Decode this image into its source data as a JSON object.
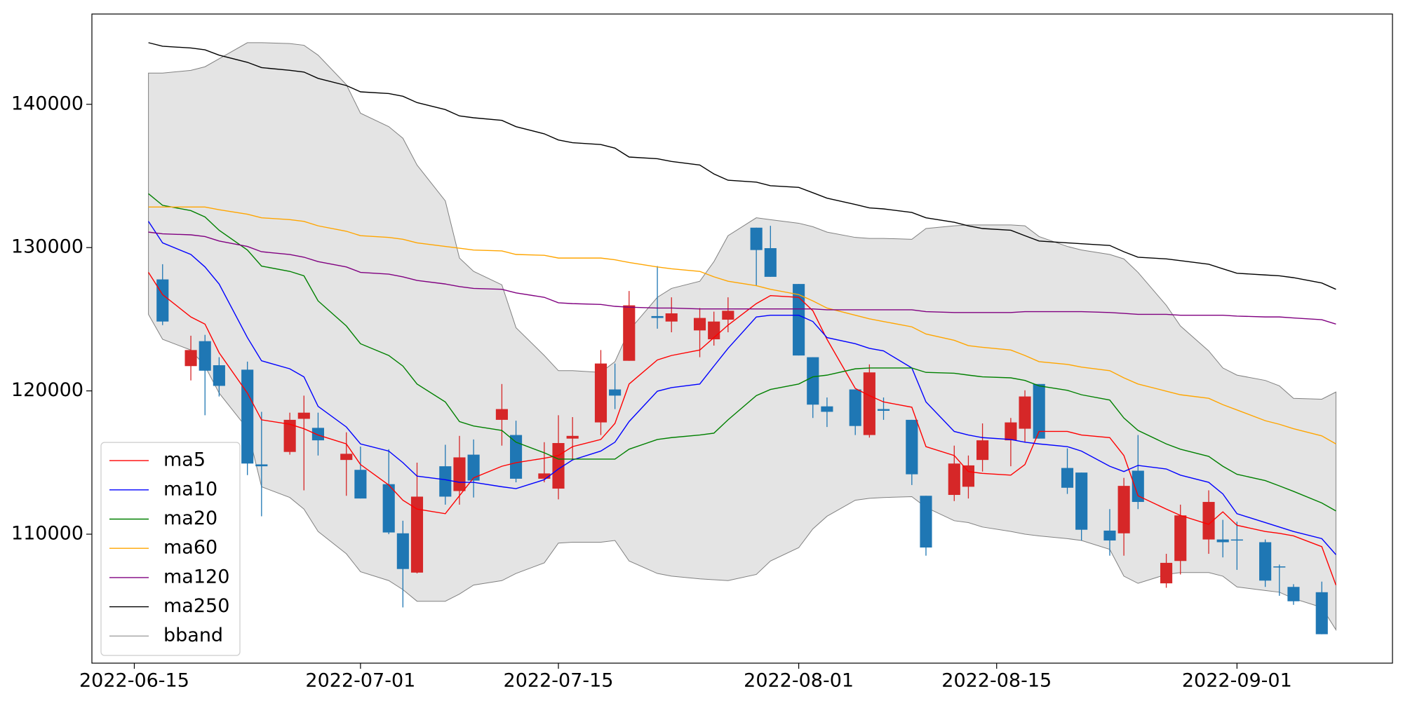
{
  "chart_data": {
    "type": "candlestick",
    "x": [
      "2022-06-16",
      "2022-06-17",
      "2022-06-19",
      "2022-06-20",
      "2022-06-21",
      "2022-06-23",
      "2022-06-24",
      "2022-06-26",
      "2022-06-27",
      "2022-06-28",
      "2022-06-30",
      "2022-07-01",
      "2022-07-03",
      "2022-07-04",
      "2022-07-05",
      "2022-07-07",
      "2022-07-08",
      "2022-07-09",
      "2022-07-11",
      "2022-07-12",
      "2022-07-14",
      "2022-07-15",
      "2022-07-16",
      "2022-07-18",
      "2022-07-19",
      "2022-07-20",
      "2022-07-22",
      "2022-07-23",
      "2022-07-25",
      "2022-07-26",
      "2022-07-27",
      "2022-07-29",
      "2022-07-30",
      "2022-08-01",
      "2022-08-02",
      "2022-08-03",
      "2022-08-05",
      "2022-08-06",
      "2022-08-07",
      "2022-08-09",
      "2022-08-10",
      "2022-08-12",
      "2022-08-13",
      "2022-08-14",
      "2022-08-16",
      "2022-08-17",
      "2022-08-18",
      "2022-08-20",
      "2022-08-21",
      "2022-08-23",
      "2022-08-24",
      "2022-08-25",
      "2022-08-27",
      "2022-08-28",
      "2022-08-30",
      "2022-08-31",
      "2022-09-01",
      "2022-09-03",
      "2022-09-04",
      "2022-09-05",
      "2022-09-07",
      "2022-09-08"
    ],
    "candles": {
      "up_color": "#d62728",
      "down_color": "#1f77b4",
      "open": [
        null,
        127780,
        121730,
        123470,
        121790,
        121480,
        114870,
        115740,
        118050,
        117420,
        115180,
        114490,
        113490,
        110060,
        107320,
        114740,
        113010,
        115550,
        117980,
        116920,
        113870,
        113180,
        116670,
        117800,
        120100,
        122100,
        125220,
        124840,
        124220,
        123600,
        124970,
        131390,
        129960,
        127460,
        122350,
        118920,
        120100,
        116920,
        118730,
        117980,
        112680,
        112740,
        113310,
        115180,
        116550,
        117360,
        120480,
        114620,
        114300,
        110250,
        110060,
        114430,
        106570,
        108130,
        109630,
        109630,
        109630,
        109440,
        107750,
        106320,
        105950,
        null
      ],
      "high": [
        null,
        128840,
        123850,
        123910,
        122350,
        122040,
        118540,
        118480,
        119670,
        118480,
        117110,
        116110,
        115930,
        110940,
        114990,
        116240,
        116860,
        116610,
        120480,
        117920,
        116420,
        118300,
        118170,
        122850,
        121910,
        126970,
        128710,
        126530,
        125780,
        125530,
        126530,
        131390,
        131520,
        127460,
        122350,
        119540,
        120100,
        121850,
        119540,
        117980,
        112680,
        116180,
        115490,
        117730,
        118110,
        120040,
        120480,
        115990,
        114300,
        111750,
        113930,
        116920,
        108630,
        112060,
        113060,
        111000,
        110870,
        109630,
        107880,
        106510,
        106690,
        null
      ],
      "low": [
        null,
        124590,
        120730,
        118300,
        119610,
        114120,
        111250,
        115550,
        113060,
        115490,
        112680,
        112490,
        110000,
        104890,
        107260,
        112060,
        112060,
        112560,
        116180,
        113620,
        113620,
        112430,
        115180,
        116920,
        118730,
        122100,
        124340,
        124090,
        122350,
        123160,
        124090,
        127340,
        127960,
        122470,
        118110,
        117480,
        116920,
        116740,
        117980,
        113430,
        108500,
        112310,
        112490,
        114370,
        114740,
        116420,
        116670,
        112810,
        109560,
        108500,
        108500,
        111750,
        106260,
        107190,
        108630,
        108380,
        107510,
        106320,
        105700,
        105070,
        103020,
        null
      ],
      "close": [
        null,
        124840,
        122850,
        121410,
        120350,
        114930,
        114740,
        117980,
        118480,
        116550,
        115610,
        112490,
        110120,
        107570,
        112620,
        112620,
        115360,
        113740,
        118730,
        113870,
        114240,
        116360,
        116860,
        121910,
        119670,
        125970,
        125090,
        125410,
        125090,
        124840,
        125590,
        129830,
        127960,
        122470,
        119040,
        118540,
        117550,
        121290,
        118610,
        114180,
        109070,
        114930,
        114800,
        116550,
        117800,
        119610,
        116670,
        113240,
        110310,
        109560,
        113370,
        112250,
        108000,
        111310,
        112250,
        109440,
        109570,
        106760,
        107690,
        105320,
        103020,
        null
      ]
    },
    "series": [
      {
        "name": "ma5",
        "color": "#ff0000",
        "values": [
          128270,
          126720,
          125160,
          124660,
          122660,
          119850,
          117980,
          117670,
          117360,
          116920,
          116300,
          114860,
          113430,
          112370,
          111750,
          111430,
          112680,
          113930,
          114740,
          114990,
          115300,
          115490,
          116110,
          116610,
          117730,
          120480,
          122160,
          122470,
          122850,
          123720,
          124590,
          126090,
          126650,
          126530,
          125590,
          123600,
          120170,
          119670,
          119230,
          118860,
          116110,
          115490,
          114370,
          114240,
          114120,
          114860,
          117170,
          117170,
          116920,
          116740,
          115490,
          112680,
          111750,
          111310,
          110690,
          111560,
          110620,
          110190,
          110060,
          109880,
          109130,
          106450
        ]
      },
      {
        "name": "ma10",
        "color": "#0000ff",
        "values": [
          131830,
          130330,
          129520,
          128650,
          127460,
          123720,
          122100,
          121540,
          120980,
          118920,
          117480,
          116300,
          115800,
          114990,
          114050,
          113800,
          113620,
          113620,
          113310,
          113180,
          113800,
          114550,
          115180,
          115800,
          116420,
          117860,
          119980,
          120230,
          120480,
          121730,
          122970,
          125160,
          125280,
          125280,
          124840,
          123720,
          123290,
          122970,
          122790,
          121600,
          119230,
          117170,
          116920,
          116740,
          116610,
          116420,
          116300,
          116110,
          115800,
          114740,
          114370,
          114800,
          114550,
          114120,
          113620,
          112810,
          111430,
          110810,
          110500,
          110190,
          109690,
          108570
        ]
      },
      {
        "name": "ma20",
        "color": "#008000",
        "values": [
          133760,
          132950,
          132580,
          132140,
          131210,
          129830,
          128710,
          128340,
          128030,
          126280,
          124530,
          123290,
          122470,
          121730,
          120480,
          119230,
          117860,
          117550,
          117240,
          116420,
          115680,
          115240,
          115240,
          115240,
          115240,
          115930,
          116610,
          116740,
          116920,
          117050,
          117980,
          119670,
          120100,
          120480,
          120980,
          121100,
          121540,
          121600,
          121600,
          121600,
          121290,
          121230,
          121100,
          120980,
          120910,
          120730,
          120350,
          120040,
          119730,
          119360,
          118110,
          117240,
          116300,
          115930,
          115430,
          114740,
          114180,
          113740,
          113370,
          112990,
          112180,
          111620
        ]
      },
      {
        "name": "ma60",
        "color": "#ffa500",
        "values": [
          132830,
          132830,
          132830,
          132830,
          132640,
          132330,
          132080,
          131950,
          131830,
          131520,
          131140,
          130830,
          130710,
          130580,
          130330,
          130080,
          129960,
          129830,
          129770,
          129520,
          129460,
          129270,
          129270,
          129270,
          129150,
          128960,
          128650,
          128520,
          128340,
          127960,
          127650,
          127340,
          127090,
          126720,
          126280,
          125780,
          125280,
          125030,
          124840,
          124470,
          123970,
          123530,
          123160,
          123040,
          122850,
          122470,
          122040,
          121850,
          121660,
          121410,
          120910,
          120480,
          119980,
          119730,
          119480,
          119040,
          118670,
          117920,
          117670,
          117360,
          116860,
          116300
        ]
      },
      {
        "name": "ma120",
        "color": "#800080",
        "values": [
          131080,
          130960,
          130890,
          130770,
          130460,
          130080,
          129710,
          129520,
          129330,
          129020,
          128650,
          128270,
          128150,
          127960,
          127710,
          127460,
          127280,
          127150,
          127090,
          126840,
          126530,
          126150,
          126090,
          126030,
          125900,
          125840,
          125780,
          125780,
          125720,
          125720,
          125720,
          125720,
          125720,
          125720,
          125720,
          125660,
          125660,
          125660,
          125660,
          125660,
          125530,
          125470,
          125470,
          125470,
          125470,
          125530,
          125530,
          125530,
          125530,
          125470,
          125410,
          125340,
          125340,
          125280,
          125280,
          125280,
          125220,
          125160,
          125160,
          125090,
          124970,
          124660
        ]
      },
      {
        "name": "ma250",
        "color": "#000000",
        "values": [
          144300,
          144050,
          143930,
          143800,
          143430,
          142930,
          142560,
          142370,
          142250,
          141810,
          141310,
          140870,
          140750,
          140560,
          140120,
          139630,
          139190,
          139060,
          138880,
          138440,
          137940,
          137510,
          137320,
          137190,
          136940,
          136320,
          136200,
          136010,
          135760,
          135140,
          134700,
          134570,
          134320,
          134200,
          133830,
          133450,
          133010,
          132770,
          132700,
          132450,
          132080,
          131770,
          131520,
          131330,
          131210,
          130830,
          130460,
          130330,
          130270,
          130150,
          129710,
          129330,
          129210,
          129090,
          128840,
          128520,
          128210,
          128090,
          128030,
          127900,
          127530,
          127090
        ]
      }
    ],
    "bband": {
      "name": "bband",
      "color": "#808080",
      "fill": "#e4e4e4",
      "upper": [
        142180,
        142180,
        142370,
        142620,
        143180,
        144300,
        144300,
        144240,
        144120,
        143430,
        141370,
        139380,
        138440,
        137630,
        135760,
        133260,
        129270,
        128340,
        127400,
        124410,
        122470,
        121410,
        121410,
        121290,
        122040,
        124220,
        126530,
        127150,
        127650,
        129020,
        130830,
        132080,
        131950,
        131700,
        131460,
        131080,
        130710,
        130640,
        130640,
        130580,
        131330,
        131520,
        131580,
        131580,
        131580,
        131520,
        130770,
        130080,
        129830,
        129520,
        129210,
        128270,
        125970,
        124530,
        122790,
        121600,
        121100,
        120730,
        120350,
        119480,
        119420,
        119920
      ],
      "lower": [
        125340,
        123600,
        122850,
        121730,
        119850,
        117360,
        113310,
        112560,
        111750,
        110190,
        108630,
        107380,
        106760,
        106130,
        105320,
        105320,
        105820,
        106450,
        106760,
        107260,
        108000,
        109380,
        109440,
        109440,
        109560,
        108130,
        107260,
        107070,
        106880,
        106820,
        106760,
        107190,
        108130,
        109060,
        110370,
        111250,
        112370,
        112500,
        112560,
        112620,
        111870,
        110940,
        110810,
        110500,
        110190,
        110000,
        109880,
        109690,
        109560,
        108940,
        107070,
        106570,
        107190,
        107320,
        107320,
        107070,
        106320,
        106070,
        105950,
        105510,
        104890,
        103330
      ]
    },
    "xlim": [
      "2022-06-12",
      "2022-09-12"
    ],
    "xticks": [
      "2022-06-15",
      "2022-07-01",
      "2022-07-15",
      "2022-08-01",
      "2022-08-15",
      "2022-09-01"
    ],
    "ylim": [
      101000,
      146300
    ],
    "yticks": [
      110000,
      120000,
      130000,
      140000
    ],
    "grid": false,
    "legend": "lower left"
  }
}
